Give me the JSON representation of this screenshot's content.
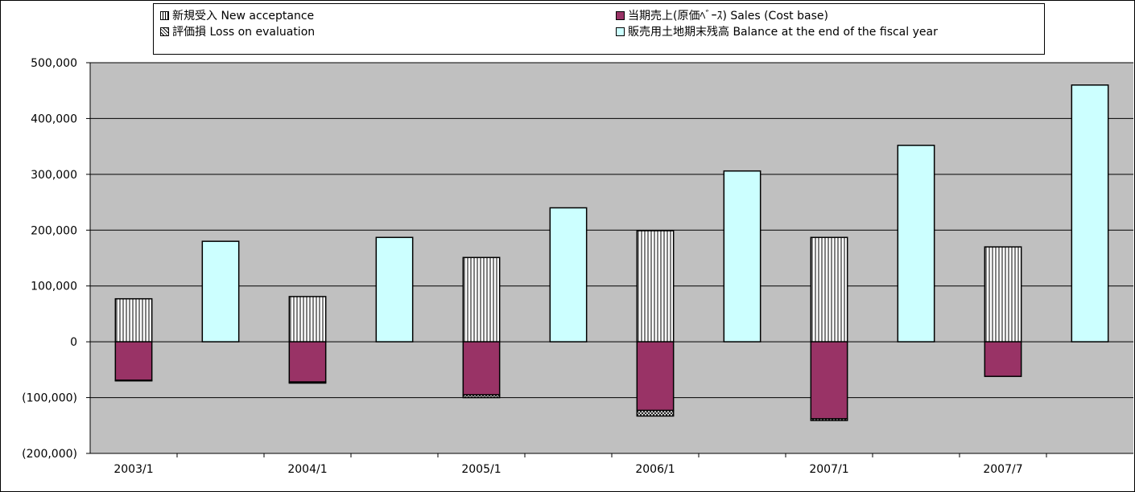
{
  "chart_data": {
    "type": "bar",
    "title": "",
    "xlabel": "",
    "ylabel": "",
    "ylim": [
      -200000,
      500000
    ],
    "y_ticks": [
      500000,
      400000,
      300000,
      200000,
      100000,
      0,
      -100000,
      -200000
    ],
    "y_tick_labels": [
      "500,000",
      "400,000",
      "300,000",
      "200,000",
      "100,000",
      "0",
      "(100,000)",
      "(200,000)"
    ],
    "categories": [
      "2003/1",
      "2004/1",
      "2005/1",
      "2006/1",
      "2007/1",
      "2007/7"
    ],
    "grid": true,
    "legend_placement": "top",
    "series": [
      {
        "name": "新規受入 New acceptance",
        "values": [
          77000,
          81000,
          151000,
          199000,
          187000,
          170000
        ],
        "color": "#ffffff",
        "pattern": "vertical-lines"
      },
      {
        "name": "当期売上(原価ﾍﾞｰｽ) Sales (Cost base)",
        "values": [
          -69000,
          -72000,
          -95000,
          -123000,
          -138000,
          -62000
        ],
        "color": "#993366",
        "pattern": "solid"
      },
      {
        "name": "評価損 Loss on evaluation",
        "values": [
          -1000,
          -2000,
          -5000,
          -10000,
          -3000,
          0
        ],
        "color": "#ffffff",
        "pattern": "crosshatch"
      },
      {
        "name": "販売用土地期末残高 Balance at the end of the fiscal year",
        "values": [
          180000,
          187000,
          240000,
          306000,
          352000,
          460000
        ],
        "color": "#ccffff",
        "pattern": "solid"
      }
    ],
    "colors": {
      "plot_background": "#c0c0c0",
      "sales": "#993366",
      "balance": "#ccffff"
    }
  }
}
